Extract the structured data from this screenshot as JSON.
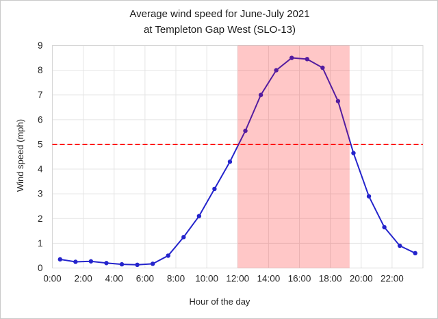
{
  "figure": {
    "title_line1": "Average wind speed for June-July 2021",
    "title_line2": "at Templeton Gap West (SLO-13)"
  },
  "chart_data": {
    "type": "line",
    "title": "Average wind speed for June-July 2021 at Templeton Gap West (SLO-13)",
    "xlabel": "Hour of the day",
    "ylabel": "Wind speed (mph)",
    "x_hours": [
      0.5,
      1.5,
      2.5,
      3.5,
      4.5,
      5.5,
      6.5,
      7.5,
      8.5,
      9.5,
      10.5,
      11.5,
      12.5,
      13.5,
      14.5,
      15.5,
      16.5,
      17.5,
      18.5,
      19.5,
      20.5,
      21.5,
      22.5,
      23.5
    ],
    "values": [
      0.35,
      0.25,
      0.27,
      0.2,
      0.15,
      0.13,
      0.17,
      0.5,
      1.25,
      2.1,
      3.2,
      4.3,
      5.55,
      7.0,
      8.0,
      8.5,
      8.45,
      8.1,
      6.75,
      4.65,
      2.9,
      1.65,
      0.9,
      0.6
    ],
    "x_tick_hours": [
      0,
      2,
      4,
      6,
      8,
      10,
      12,
      14,
      16,
      18,
      20,
      22
    ],
    "x_tick_labels": [
      "0:00",
      "2:00",
      "4:00",
      "6:00",
      "8:00",
      "10:00",
      "12:00",
      "14:00",
      "16:00",
      "18:00",
      "20:00",
      "22:00"
    ],
    "y_ticks": [
      0,
      1,
      2,
      3,
      4,
      5,
      6,
      7,
      8,
      9
    ],
    "xlim": [
      0,
      24
    ],
    "ylim": [
      0,
      9
    ],
    "grid": true,
    "legend": "none",
    "line_color": "#2424cc",
    "marker": "circle",
    "reference_line": {
      "y": 5,
      "color": "#ff0000",
      "style": "dashed"
    },
    "shaded_region": {
      "x_start": 12,
      "x_end": 19.25,
      "color": "rgba(255,0,0,0.22)"
    },
    "grid_color": "#e4e4e4",
    "plot_border_color": "#d6d6d6",
    "tick_label_color": "#262626"
  }
}
